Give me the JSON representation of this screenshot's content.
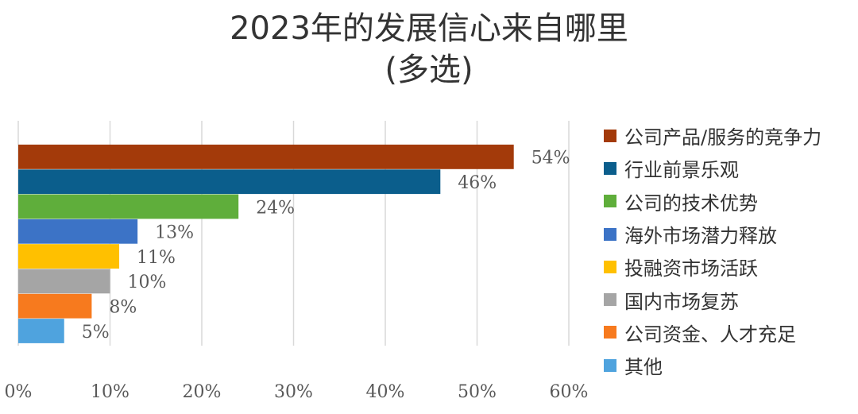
{
  "chart_data": {
    "type": "bar",
    "orientation": "horizontal",
    "title": [
      "2023年的发展信心来自哪里",
      "(多选)"
    ],
    "categories": [
      "公司产品/服务的竞争力",
      "行业前景乐观",
      "公司的技术优势",
      "海外市场潜力释放",
      "投融资市场活跃",
      "国内市场复苏",
      "公司资金、人才充足",
      "其他"
    ],
    "values": [
      54,
      46,
      24,
      13,
      11,
      10,
      8,
      5
    ],
    "value_labels": [
      "54%",
      "46%",
      "24%",
      "13%",
      "11%",
      "10%",
      "8%",
      "5%"
    ],
    "colors": [
      "#A33A0A",
      "#0B5E8C",
      "#5FAE3B",
      "#3C73C6",
      "#FFC000",
      "#A5A5A5",
      "#F77A1E",
      "#4FA3DE"
    ],
    "xlim": [
      0,
      60
    ],
    "xticks": [
      "0%",
      "10%",
      "20%",
      "30%",
      "40%",
      "50%",
      "60%"
    ],
    "grid": "vertical",
    "legend_position": "right"
  }
}
